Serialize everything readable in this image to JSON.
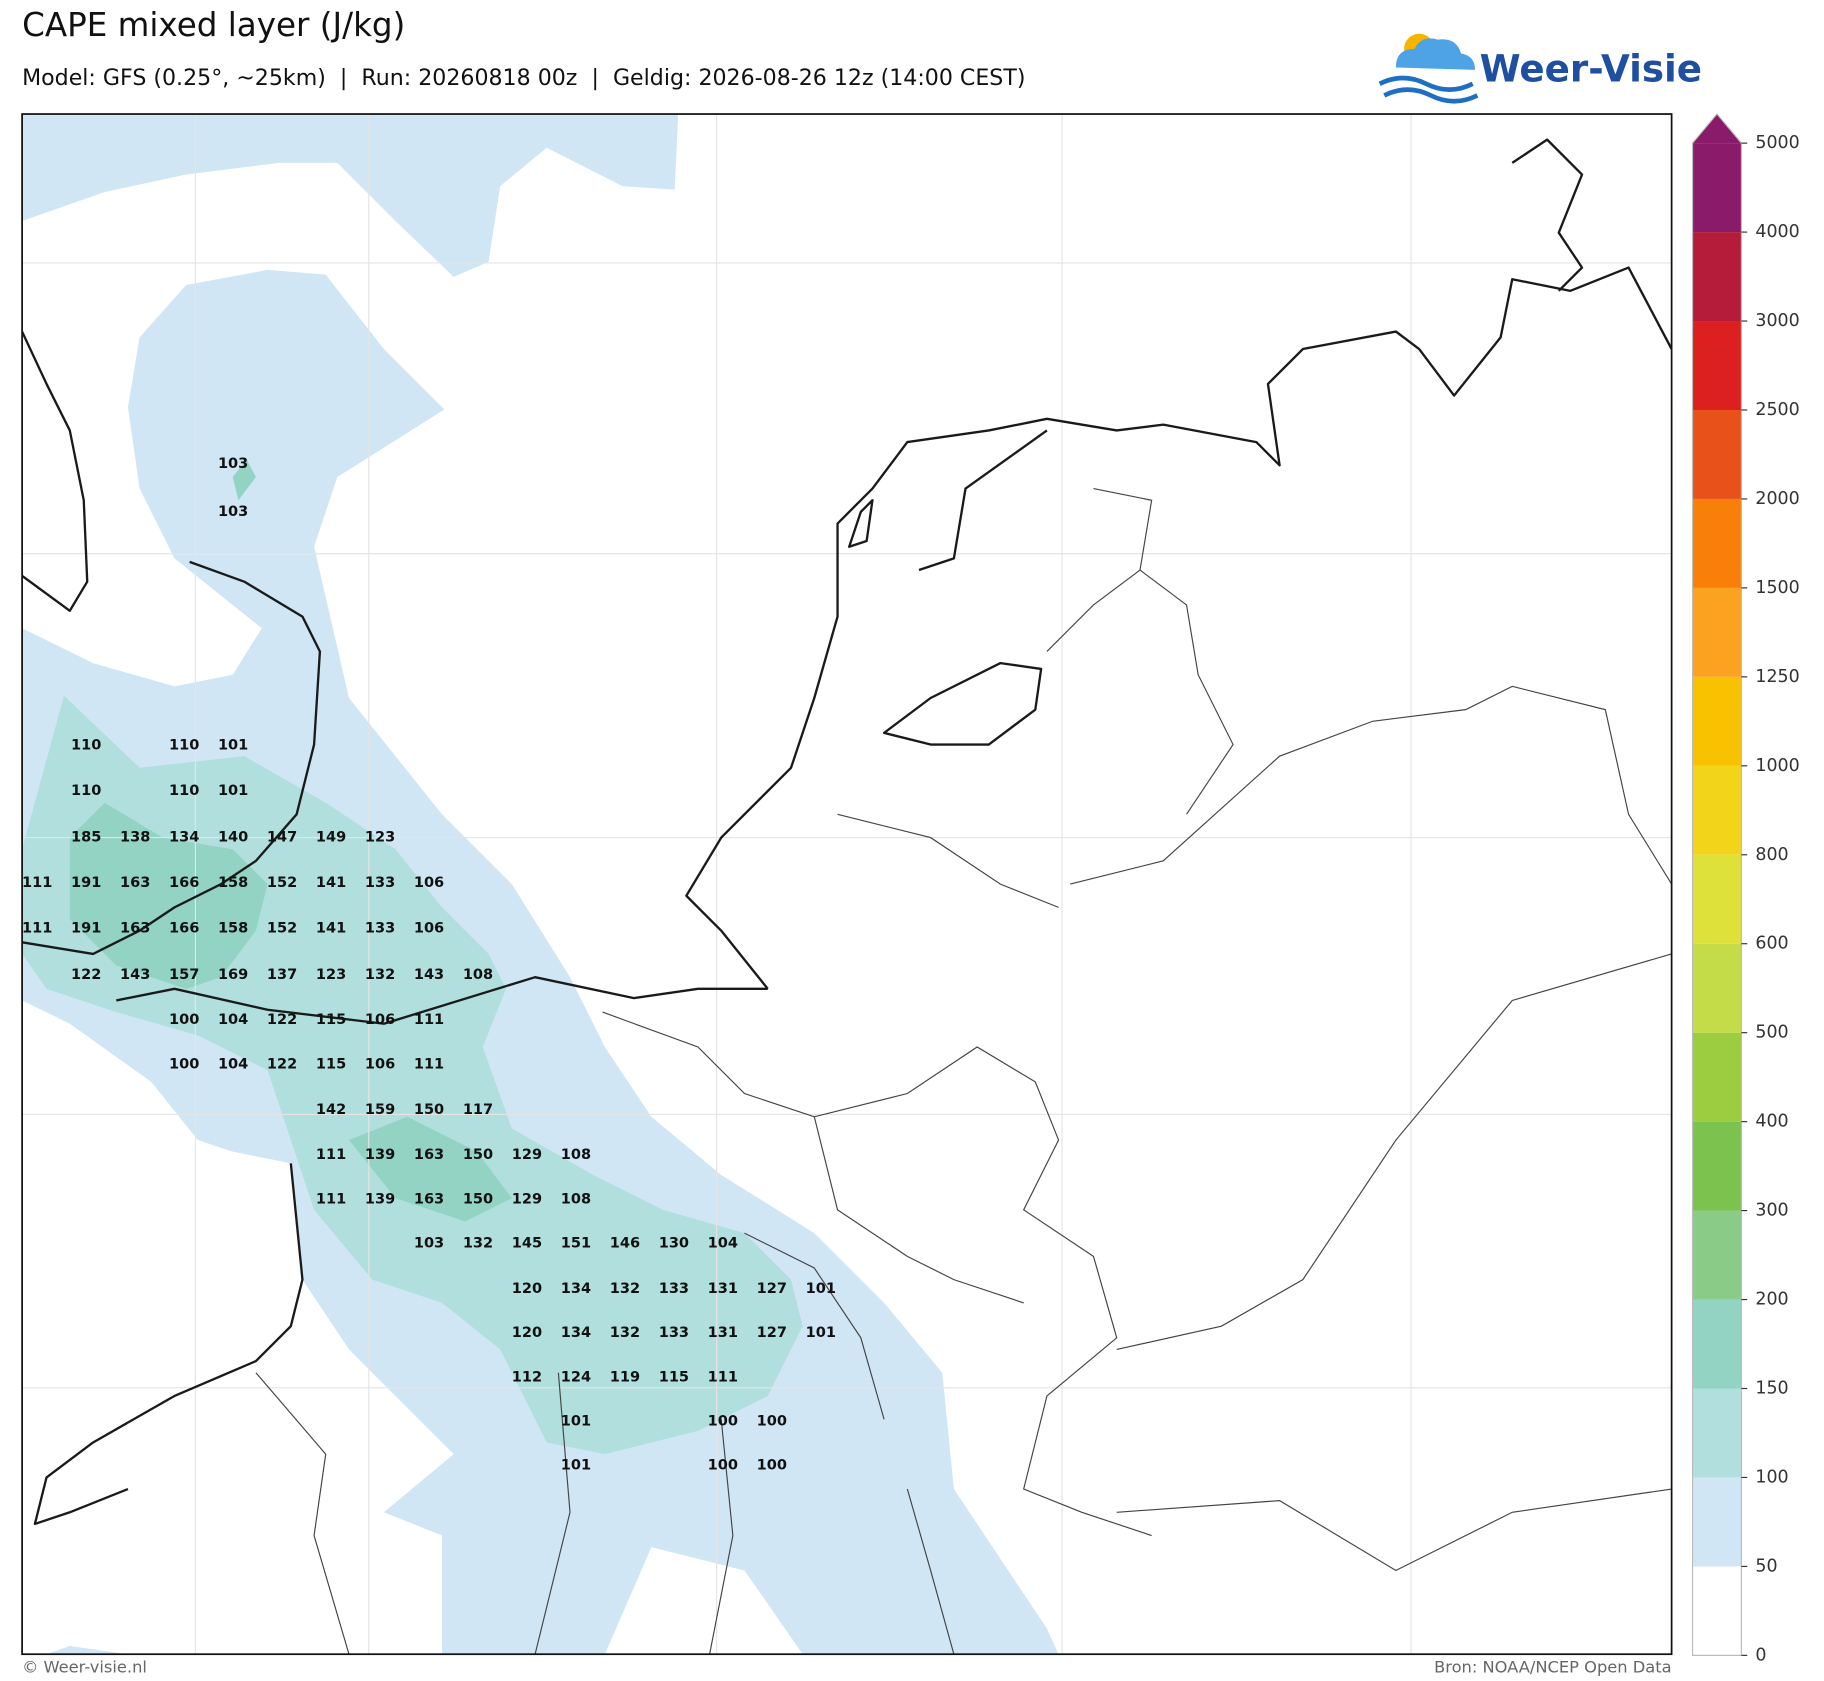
{
  "header": {
    "title": "CAPE mixed layer (J/kg)",
    "subtitle": "Model: GFS (0.25°, ~25km)  |  Run: 20260818 00z  |  Geldig: 2026-08-26 12z (14:00 CEST)",
    "logo": "Weer-Visie"
  },
  "colorbar": {
    "ticks": [
      0,
      50,
      100,
      150,
      200,
      300,
      400,
      500,
      600,
      800,
      1000,
      1250,
      1500,
      2000,
      2500,
      3000,
      4000,
      5000
    ],
    "colors": [
      "#ffffff",
      "#d0e6f5",
      "#b1dfdd",
      "#92d3c3",
      "#8acb87",
      "#7bc24f",
      "#9ccd40",
      "#c3dc48",
      "#dde13a",
      "#f2d41b",
      "#f9c200",
      "#fba321",
      "#f8800a",
      "#e9511a",
      "#dc1f1f",
      "#b51c3a",
      "#8a1a6a"
    ]
  },
  "map": {
    "value_rows": [
      [
        103
      ],
      [
        103
      ],
      [
        110,
        null,
        110,
        101
      ],
      [
        110,
        null,
        110,
        101
      ],
      [
        185,
        138,
        134,
        140,
        147,
        149,
        123
      ],
      [
        111,
        191,
        163,
        166,
        158,
        152,
        141,
        133,
        106
      ],
      [
        111,
        191,
        163,
        166,
        158,
        152,
        141,
        133,
        106
      ],
      [
        122,
        143,
        157,
        169,
        137,
        123,
        132,
        143,
        108
      ],
      [
        100,
        104,
        122,
        115,
        106,
        111
      ],
      [
        100,
        104,
        122,
        115,
        106,
        111
      ],
      [
        142,
        159,
        150,
        117
      ],
      [
        111,
        139,
        163,
        150,
        129,
        108
      ],
      [
        111,
        139,
        163,
        150,
        129,
        108
      ],
      [
        103,
        132,
        145,
        151,
        146,
        130,
        104
      ],
      [
        120,
        134,
        132,
        133,
        131,
        127,
        101
      ],
      [
        120,
        134,
        132,
        133,
        131,
        127,
        101
      ],
      [
        112,
        124,
        119,
        115,
        111
      ],
      [
        101,
        null,
        null,
        100,
        100
      ],
      [
        101,
        null,
        null,
        100,
        100
      ]
    ]
  },
  "footer": {
    "credit": "© Weer-visie.nl",
    "source": "Bron: NOAA/NCEP Open Data"
  }
}
